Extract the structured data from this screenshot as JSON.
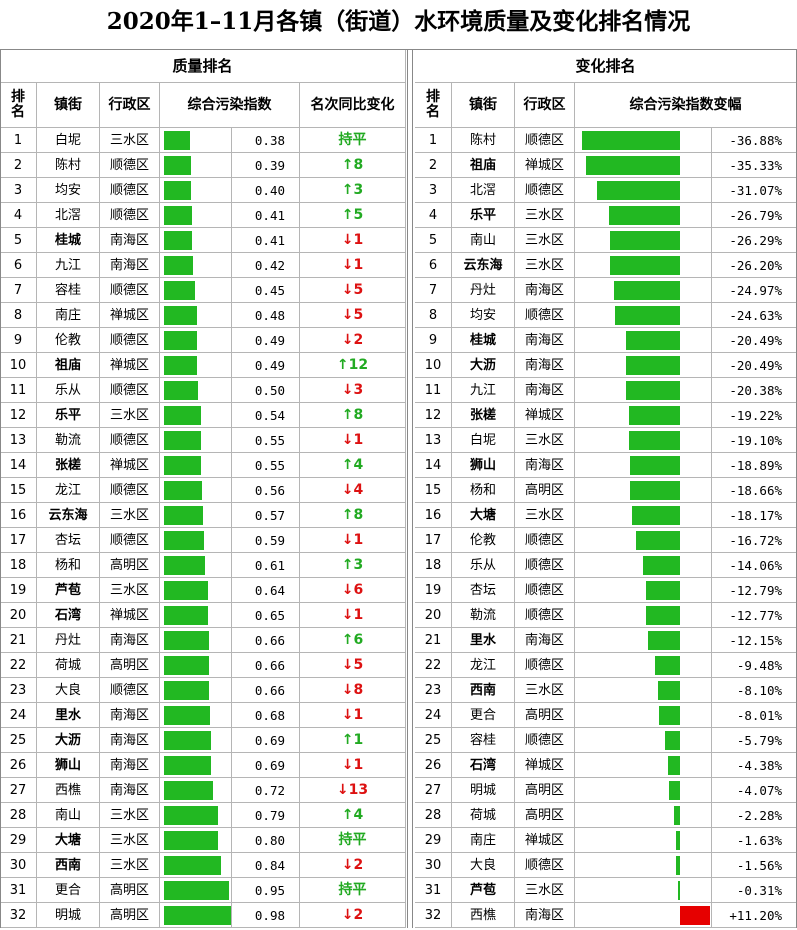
{
  "title": "2020年1–11月各镇（街道）水环境质量及变化排名情况",
  "colors": {
    "green_bar": "#22b822",
    "red_bar": "#e60000",
    "up": "#22aa22",
    "down": "#dd1111"
  },
  "left": {
    "section_title": "质量排名",
    "headers": {
      "rank": "排\n名",
      "town": "镇街",
      "district": "行政区",
      "index": "综合污染指数",
      "change": "名次同比变化"
    },
    "rows": [
      {
        "rank": "1",
        "town": "白坭",
        "bold": false,
        "district": "三水区",
        "index": 0.38,
        "index_label": "0.38",
        "change": "持平",
        "dir": "flat"
      },
      {
        "rank": "2",
        "town": "陈村",
        "bold": false,
        "district": "顺德区",
        "index": 0.39,
        "index_label": "0.39",
        "change": "↑8",
        "dir": "up"
      },
      {
        "rank": "3",
        "town": "均安",
        "bold": false,
        "district": "顺德区",
        "index": 0.4,
        "index_label": "0.40",
        "change": "↑3",
        "dir": "up"
      },
      {
        "rank": "4",
        "town": "北滘",
        "bold": false,
        "district": "顺德区",
        "index": 0.41,
        "index_label": "0.41",
        "change": "↑5",
        "dir": "up"
      },
      {
        "rank": "5",
        "town": "桂城",
        "bold": true,
        "district": "南海区",
        "index": 0.41,
        "index_label": "0.41",
        "change": "↓1",
        "dir": "down"
      },
      {
        "rank": "6",
        "town": "九江",
        "bold": false,
        "district": "南海区",
        "index": 0.42,
        "index_label": "0.42",
        "change": "↓1",
        "dir": "down"
      },
      {
        "rank": "7",
        "town": "容桂",
        "bold": false,
        "district": "顺德区",
        "index": 0.45,
        "index_label": "0.45",
        "change": "↓5",
        "dir": "down"
      },
      {
        "rank": "8",
        "town": "南庄",
        "bold": false,
        "district": "禅城区",
        "index": 0.48,
        "index_label": "0.48",
        "change": "↓5",
        "dir": "down"
      },
      {
        "rank": "9",
        "town": "伦教",
        "bold": false,
        "district": "顺德区",
        "index": 0.49,
        "index_label": "0.49",
        "change": "↓2",
        "dir": "down"
      },
      {
        "rank": "10",
        "town": "祖庙",
        "bold": true,
        "district": "禅城区",
        "index": 0.49,
        "index_label": "0.49",
        "change": "↑12",
        "dir": "up"
      },
      {
        "rank": "11",
        "town": "乐从",
        "bold": false,
        "district": "顺德区",
        "index": 0.5,
        "index_label": "0.50",
        "change": "↓3",
        "dir": "down"
      },
      {
        "rank": "12",
        "town": "乐平",
        "bold": true,
        "district": "三水区",
        "index": 0.54,
        "index_label": "0.54",
        "change": "↑8",
        "dir": "up"
      },
      {
        "rank": "13",
        "town": "勒流",
        "bold": false,
        "district": "顺德区",
        "index": 0.55,
        "index_label": "0.55",
        "change": "↓1",
        "dir": "down"
      },
      {
        "rank": "14",
        "town": "张槎",
        "bold": true,
        "district": "禅城区",
        "index": 0.55,
        "index_label": "0.55",
        "change": "↑4",
        "dir": "up"
      },
      {
        "rank": "15",
        "town": "龙江",
        "bold": false,
        "district": "顺德区",
        "index": 0.56,
        "index_label": "0.56",
        "change": "↓4",
        "dir": "down"
      },
      {
        "rank": "16",
        "town": "云东海",
        "bold": true,
        "district": "三水区",
        "index": 0.57,
        "index_label": "0.57",
        "change": "↑8",
        "dir": "up"
      },
      {
        "rank": "17",
        "town": "杏坛",
        "bold": false,
        "district": "顺德区",
        "index": 0.59,
        "index_label": "0.59",
        "change": "↓1",
        "dir": "down"
      },
      {
        "rank": "18",
        "town": "杨和",
        "bold": false,
        "district": "高明区",
        "index": 0.61,
        "index_label": "0.61",
        "change": "↑3",
        "dir": "up"
      },
      {
        "rank": "19",
        "town": "芦苞",
        "bold": true,
        "district": "三水区",
        "index": 0.64,
        "index_label": "0.64",
        "change": "↓6",
        "dir": "down"
      },
      {
        "rank": "20",
        "town": "石湾",
        "bold": true,
        "district": "禅城区",
        "index": 0.65,
        "index_label": "0.65",
        "change": "↓1",
        "dir": "down"
      },
      {
        "rank": "21",
        "town": "丹灶",
        "bold": false,
        "district": "南海区",
        "index": 0.66,
        "index_label": "0.66",
        "change": "↑6",
        "dir": "up"
      },
      {
        "rank": "22",
        "town": "荷城",
        "bold": false,
        "district": "高明区",
        "index": 0.66,
        "index_label": "0.66",
        "change": "↓5",
        "dir": "down"
      },
      {
        "rank": "23",
        "town": "大良",
        "bold": false,
        "district": "顺德区",
        "index": 0.66,
        "index_label": "0.66",
        "change": "↓8",
        "dir": "down"
      },
      {
        "rank": "24",
        "town": "里水",
        "bold": true,
        "district": "南海区",
        "index": 0.68,
        "index_label": "0.68",
        "change": "↓1",
        "dir": "down"
      },
      {
        "rank": "25",
        "town": "大沥",
        "bold": true,
        "district": "南海区",
        "index": 0.69,
        "index_label": "0.69",
        "change": "↑1",
        "dir": "up"
      },
      {
        "rank": "26",
        "town": "狮山",
        "bold": true,
        "district": "南海区",
        "index": 0.69,
        "index_label": "0.69",
        "change": "↓1",
        "dir": "down"
      },
      {
        "rank": "27",
        "town": "西樵",
        "bold": false,
        "district": "南海区",
        "index": 0.72,
        "index_label": "0.72",
        "change": "↓13",
        "dir": "down"
      },
      {
        "rank": "28",
        "town": "南山",
        "bold": false,
        "district": "三水区",
        "index": 0.79,
        "index_label": "0.79",
        "change": "↑4",
        "dir": "up"
      },
      {
        "rank": "29",
        "town": "大塘",
        "bold": true,
        "district": "三水区",
        "index": 0.8,
        "index_label": "0.80",
        "change": "持平",
        "dir": "flat"
      },
      {
        "rank": "30",
        "town": "西南",
        "bold": true,
        "district": "三水区",
        "index": 0.84,
        "index_label": "0.84",
        "change": "↓2",
        "dir": "down"
      },
      {
        "rank": "31",
        "town": "更合",
        "bold": false,
        "district": "高明区",
        "index": 0.95,
        "index_label": "0.95",
        "change": "持平",
        "dir": "flat"
      },
      {
        "rank": "32",
        "town": "明城",
        "bold": false,
        "district": "高明区",
        "index": 0.98,
        "index_label": "0.98",
        "change": "↓2",
        "dir": "down"
      }
    ]
  },
  "right": {
    "section_title": "变化排名",
    "headers": {
      "rank": "排\n名",
      "town": "镇街",
      "district": "行政区",
      "change": "综合污染指数变幅"
    },
    "rows": [
      {
        "rank": "1",
        "town": "陈村",
        "bold": false,
        "district": "顺德区",
        "pct": -36.88,
        "pct_label": "-36.88%"
      },
      {
        "rank": "2",
        "town": "祖庙",
        "bold": true,
        "district": "禅城区",
        "pct": -35.33,
        "pct_label": "-35.33%"
      },
      {
        "rank": "3",
        "town": "北滘",
        "bold": false,
        "district": "顺德区",
        "pct": -31.07,
        "pct_label": "-31.07%"
      },
      {
        "rank": "4",
        "town": "乐平",
        "bold": true,
        "district": "三水区",
        "pct": -26.79,
        "pct_label": "-26.79%"
      },
      {
        "rank": "5",
        "town": "南山",
        "bold": false,
        "district": "三水区",
        "pct": -26.29,
        "pct_label": "-26.29%"
      },
      {
        "rank": "6",
        "town": "云东海",
        "bold": true,
        "district": "三水区",
        "pct": -26.2,
        "pct_label": "-26.20%"
      },
      {
        "rank": "7",
        "town": "丹灶",
        "bold": false,
        "district": "南海区",
        "pct": -24.97,
        "pct_label": "-24.97%"
      },
      {
        "rank": "8",
        "town": "均安",
        "bold": false,
        "district": "顺德区",
        "pct": -24.63,
        "pct_label": "-24.63%"
      },
      {
        "rank": "9",
        "town": "桂城",
        "bold": true,
        "district": "南海区",
        "pct": -20.49,
        "pct_label": "-20.49%"
      },
      {
        "rank": "10",
        "town": "大沥",
        "bold": true,
        "district": "南海区",
        "pct": -20.49,
        "pct_label": "-20.49%"
      },
      {
        "rank": "11",
        "town": "九江",
        "bold": false,
        "district": "南海区",
        "pct": -20.38,
        "pct_label": "-20.38%"
      },
      {
        "rank": "12",
        "town": "张槎",
        "bold": true,
        "district": "禅城区",
        "pct": -19.22,
        "pct_label": "-19.22%"
      },
      {
        "rank": "13",
        "town": "白坭",
        "bold": false,
        "district": "三水区",
        "pct": -19.1,
        "pct_label": "-19.10%"
      },
      {
        "rank": "14",
        "town": "狮山",
        "bold": true,
        "district": "南海区",
        "pct": -18.89,
        "pct_label": "-18.89%"
      },
      {
        "rank": "15",
        "town": "杨和",
        "bold": false,
        "district": "高明区",
        "pct": -18.66,
        "pct_label": "-18.66%"
      },
      {
        "rank": "16",
        "town": "大塘",
        "bold": true,
        "district": "三水区",
        "pct": -18.17,
        "pct_label": "-18.17%"
      },
      {
        "rank": "17",
        "town": "伦教",
        "bold": false,
        "district": "顺德区",
        "pct": -16.72,
        "pct_label": "-16.72%"
      },
      {
        "rank": "18",
        "town": "乐从",
        "bold": false,
        "district": "顺德区",
        "pct": -14.06,
        "pct_label": "-14.06%"
      },
      {
        "rank": "19",
        "town": "杏坛",
        "bold": false,
        "district": "顺德区",
        "pct": -12.79,
        "pct_label": "-12.79%"
      },
      {
        "rank": "20",
        "town": "勒流",
        "bold": false,
        "district": "顺德区",
        "pct": -12.77,
        "pct_label": "-12.77%"
      },
      {
        "rank": "21",
        "town": "里水",
        "bold": true,
        "district": "南海区",
        "pct": -12.15,
        "pct_label": "-12.15%"
      },
      {
        "rank": "22",
        "town": "龙江",
        "bold": false,
        "district": "顺德区",
        "pct": -9.48,
        "pct_label": "-9.48%"
      },
      {
        "rank": "23",
        "town": "西南",
        "bold": true,
        "district": "三水区",
        "pct": -8.1,
        "pct_label": "-8.10%"
      },
      {
        "rank": "24",
        "town": "更合",
        "bold": false,
        "district": "高明区",
        "pct": -8.01,
        "pct_label": "-8.01%"
      },
      {
        "rank": "25",
        "town": "容桂",
        "bold": false,
        "district": "顺德区",
        "pct": -5.79,
        "pct_label": "-5.79%"
      },
      {
        "rank": "26",
        "town": "石湾",
        "bold": true,
        "district": "禅城区",
        "pct": -4.38,
        "pct_label": "-4.38%"
      },
      {
        "rank": "27",
        "town": "明城",
        "bold": false,
        "district": "高明区",
        "pct": -4.07,
        "pct_label": "-4.07%"
      },
      {
        "rank": "28",
        "town": "荷城",
        "bold": false,
        "district": "高明区",
        "pct": -2.28,
        "pct_label": "-2.28%"
      },
      {
        "rank": "29",
        "town": "南庄",
        "bold": false,
        "district": "禅城区",
        "pct": -1.63,
        "pct_label": "-1.63%"
      },
      {
        "rank": "30",
        "town": "大良",
        "bold": false,
        "district": "顺德区",
        "pct": -1.56,
        "pct_label": "-1.56%"
      },
      {
        "rank": "31",
        "town": "芦苞",
        "bold": true,
        "district": "三水区",
        "pct": -0.31,
        "pct_label": "-0.31%"
      },
      {
        "rank": "32",
        "town": "西樵",
        "bold": false,
        "district": "南海区",
        "pct": 11.2,
        "pct_label": "+11.20%"
      }
    ]
  }
}
